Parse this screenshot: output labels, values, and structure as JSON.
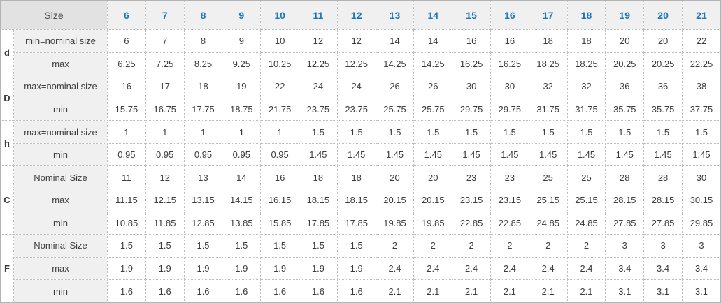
{
  "colors": {
    "header_number_blue": "#1b75bc",
    "corner_bg": "#e2e2e2",
    "header_bg": "#f0f0f0",
    "label_bg": "#f0f0f0",
    "text": "#3c3c3c",
    "border_dotted": "#bdbdbd",
    "border_outer": "#b3b3b3"
  },
  "chart_data": {
    "type": "table",
    "title": "",
    "corner_label": "Size",
    "size_columns": [
      "6",
      "7",
      "8",
      "9",
      "10",
      "11",
      "12",
      "13",
      "14",
      "15",
      "16",
      "17",
      "18",
      "19",
      "20",
      "21"
    ],
    "row_groups": [
      {
        "group": "d",
        "rows": [
          {
            "label": "min=nominal size",
            "values": [
              "6",
              "7",
              "8",
              "9",
              "10",
              "12",
              "12",
              "14",
              "14",
              "16",
              "16",
              "18",
              "18",
              "20",
              "20",
              "22"
            ]
          },
          {
            "label": "max",
            "values": [
              "6.25",
              "7.25",
              "8.25",
              "9.25",
              "10.25",
              "12.25",
              "12.25",
              "14.25",
              "14.25",
              "16.25",
              "16.25",
              "18.25",
              "18.25",
              "20.25",
              "20.25",
              "22.25"
            ]
          }
        ]
      },
      {
        "group": "D",
        "rows": [
          {
            "label": "max=nominal size",
            "values": [
              "16",
              "17",
              "18",
              "19",
              "22",
              "24",
              "24",
              "26",
              "26",
              "30",
              "30",
              "32",
              "32",
              "36",
              "36",
              "38"
            ]
          },
          {
            "label": "min",
            "values": [
              "15.75",
              "16.75",
              "17.75",
              "18.75",
              "21.75",
              "23.75",
              "23.75",
              "25.75",
              "25.75",
              "29.75",
              "29.75",
              "31.75",
              "31.75",
              "35.75",
              "35.75",
              "37.75"
            ]
          }
        ]
      },
      {
        "group": "h",
        "rows": [
          {
            "label": "max=nominal size",
            "values": [
              "1",
              "1",
              "1",
              "1",
              "1",
              "1.5",
              "1.5",
              "1.5",
              "1.5",
              "1.5",
              "1.5",
              "1.5",
              "1.5",
              "1.5",
              "1.5",
              "1.5"
            ]
          },
          {
            "label": "min",
            "values": [
              "0.95",
              "0.95",
              "0.95",
              "0.95",
              "0.95",
              "1.45",
              "1.45",
              "1.45",
              "1.45",
              "1.45",
              "1.45",
              "1.45",
              "1.45",
              "1.45",
              "1.45",
              "1.45"
            ]
          }
        ]
      },
      {
        "group": "C",
        "rows": [
          {
            "label": "Nominal Size",
            "values": [
              "11",
              "12",
              "13",
              "14",
              "16",
              "18",
              "18",
              "20",
              "20",
              "23",
              "23",
              "25",
              "25",
              "28",
              "28",
              "30"
            ]
          },
          {
            "label": "max",
            "values": [
              "11.15",
              "12.15",
              "13.15",
              "14.15",
              "16.15",
              "18.15",
              "18.15",
              "20.15",
              "20.15",
              "23.15",
              "23.15",
              "25.15",
              "25.15",
              "28.15",
              "28.15",
              "30.15"
            ]
          },
          {
            "label": "min",
            "values": [
              "10.85",
              "11.85",
              "12.85",
              "13.85",
              "15.85",
              "17.85",
              "17.85",
              "19.85",
              "19.85",
              "22.85",
              "22.85",
              "24.85",
              "24.85",
              "27.85",
              "27.85",
              "29.85"
            ]
          }
        ]
      },
      {
        "group": "F",
        "rows": [
          {
            "label": "Nominal Size",
            "values": [
              "1.5",
              "1.5",
              "1.5",
              "1.5",
              "1.5",
              "1.5",
              "1.5",
              "2",
              "2",
              "2",
              "2",
              "2",
              "2",
              "3",
              "3",
              "3"
            ]
          },
          {
            "label": "max",
            "values": [
              "1.9",
              "1.9",
              "1.9",
              "1.9",
              "1.9",
              "1.9",
              "1.9",
              "2.4",
              "2.4",
              "2.4",
              "2.4",
              "2.4",
              "2.4",
              "3.4",
              "3.4",
              "3.4"
            ]
          },
          {
            "label": "min",
            "values": [
              "1.6",
              "1.6",
              "1.6",
              "1.6",
              "1.6",
              "1.6",
              "1.6",
              "2.1",
              "2.1",
              "2.1",
              "2.1",
              "2.1",
              "2.1",
              "3.1",
              "3.1",
              "3.1"
            ]
          }
        ]
      }
    ]
  }
}
